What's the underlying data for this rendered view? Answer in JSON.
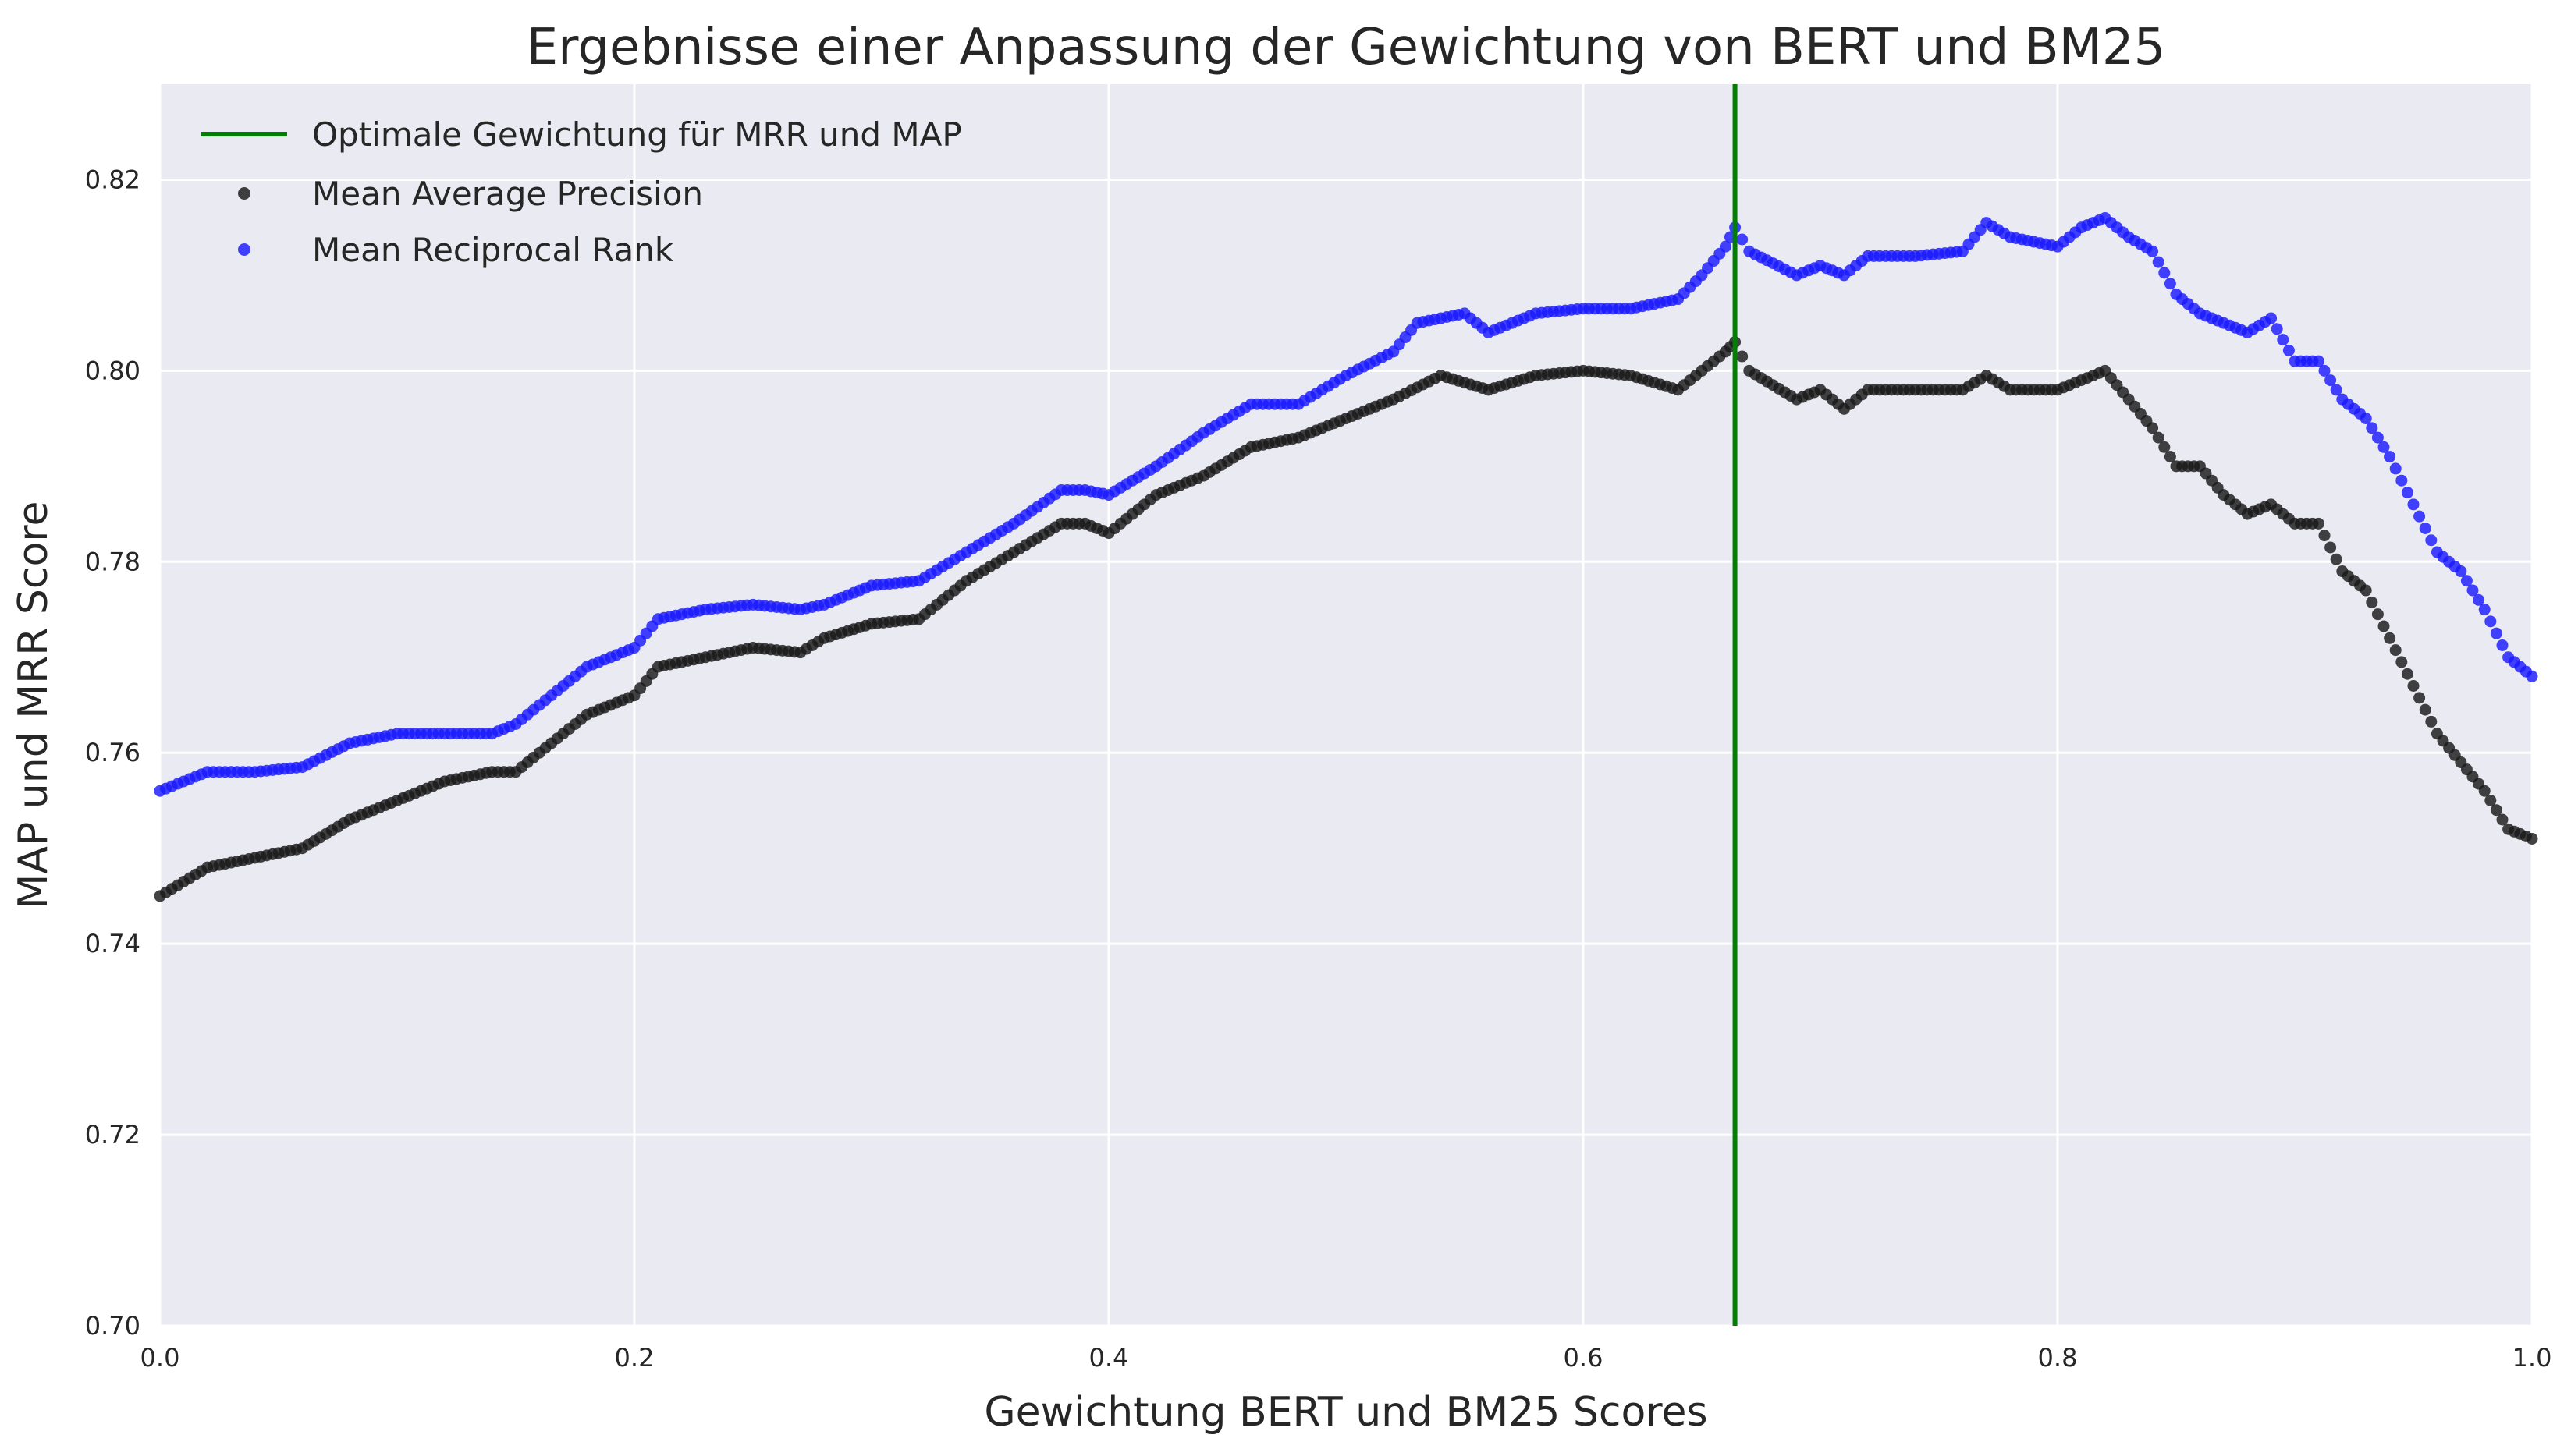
{
  "chart_data": {
    "type": "scatter",
    "title": "Ergebnisse einer Anpassung der Gewichtung von BERT und BM25",
    "xlabel": "Gewichtung BERT und BM25 Scores",
    "ylabel": "MAP und MRR Score",
    "xlim": [
      0.0,
      1.0
    ],
    "ylim": [
      0.7,
      0.83
    ],
    "xticks": [
      "0.0",
      "0.2",
      "0.4",
      "0.6",
      "0.8",
      "1.0"
    ],
    "yticks": [
      "0.70",
      "0.72",
      "0.74",
      "0.76",
      "0.78",
      "0.80",
      "0.82"
    ],
    "grid": true,
    "legend_position": "top-left",
    "background_color": "#eaeaf2",
    "vline": {
      "name": "Optimale Gewichtung für MRR und MAP",
      "x": 0.664,
      "color": "#008000"
    },
    "series": [
      {
        "name": "Mean Average Precision",
        "color": "#1a1a1a",
        "points": [
          [
            0.0,
            0.745
          ],
          [
            0.02,
            0.748
          ],
          [
            0.04,
            0.749
          ],
          [
            0.06,
            0.75
          ],
          [
            0.08,
            0.753
          ],
          [
            0.1,
            0.755
          ],
          [
            0.12,
            0.757
          ],
          [
            0.14,
            0.758
          ],
          [
            0.15,
            0.758
          ],
          [
            0.16,
            0.76
          ],
          [
            0.18,
            0.764
          ],
          [
            0.2,
            0.766
          ],
          [
            0.21,
            0.769
          ],
          [
            0.23,
            0.77
          ],
          [
            0.25,
            0.771
          ],
          [
            0.27,
            0.7705
          ],
          [
            0.28,
            0.772
          ],
          [
            0.3,
            0.7735
          ],
          [
            0.32,
            0.774
          ],
          [
            0.34,
            0.778
          ],
          [
            0.36,
            0.781
          ],
          [
            0.38,
            0.784
          ],
          [
            0.39,
            0.784
          ],
          [
            0.4,
            0.783
          ],
          [
            0.42,
            0.787
          ],
          [
            0.44,
            0.789
          ],
          [
            0.46,
            0.792
          ],
          [
            0.48,
            0.793
          ],
          [
            0.5,
            0.795
          ],
          [
            0.52,
            0.797
          ],
          [
            0.54,
            0.7995
          ],
          [
            0.56,
            0.798
          ],
          [
            0.58,
            0.7995
          ],
          [
            0.6,
            0.8
          ],
          [
            0.62,
            0.7995
          ],
          [
            0.64,
            0.798
          ],
          [
            0.66,
            0.802
          ],
          [
            0.664,
            0.803
          ],
          [
            0.67,
            0.8
          ],
          [
            0.69,
            0.797
          ],
          [
            0.7,
            0.798
          ],
          [
            0.71,
            0.796
          ],
          [
            0.72,
            0.798
          ],
          [
            0.74,
            0.798
          ],
          [
            0.76,
            0.798
          ],
          [
            0.77,
            0.7995
          ],
          [
            0.78,
            0.798
          ],
          [
            0.8,
            0.798
          ],
          [
            0.82,
            0.8
          ],
          [
            0.83,
            0.797
          ],
          [
            0.84,
            0.794
          ],
          [
            0.85,
            0.79
          ],
          [
            0.86,
            0.79
          ],
          [
            0.87,
            0.787
          ],
          [
            0.88,
            0.785
          ],
          [
            0.89,
            0.786
          ],
          [
            0.9,
            0.784
          ],
          [
            0.91,
            0.784
          ],
          [
            0.92,
            0.779
          ],
          [
            0.93,
            0.777
          ],
          [
            0.94,
            0.772
          ],
          [
            0.95,
            0.767
          ],
          [
            0.96,
            0.762
          ],
          [
            0.97,
            0.759
          ],
          [
            0.98,
            0.756
          ],
          [
            0.99,
            0.752
          ],
          [
            1.0,
            0.751
          ]
        ]
      },
      {
        "name": "Mean Reciprocal Rank",
        "color": "#1a1aff",
        "points": [
          [
            0.0,
            0.756
          ],
          [
            0.02,
            0.758
          ],
          [
            0.04,
            0.758
          ],
          [
            0.06,
            0.7585
          ],
          [
            0.08,
            0.761
          ],
          [
            0.1,
            0.762
          ],
          [
            0.12,
            0.762
          ],
          [
            0.14,
            0.762
          ],
          [
            0.15,
            0.763
          ],
          [
            0.16,
            0.765
          ],
          [
            0.18,
            0.769
          ],
          [
            0.2,
            0.771
          ],
          [
            0.21,
            0.774
          ],
          [
            0.23,
            0.775
          ],
          [
            0.25,
            0.7755
          ],
          [
            0.27,
            0.775
          ],
          [
            0.28,
            0.7755
          ],
          [
            0.3,
            0.7775
          ],
          [
            0.32,
            0.778
          ],
          [
            0.34,
            0.781
          ],
          [
            0.36,
            0.784
          ],
          [
            0.38,
            0.7875
          ],
          [
            0.39,
            0.7875
          ],
          [
            0.4,
            0.787
          ],
          [
            0.42,
            0.79
          ],
          [
            0.44,
            0.7935
          ],
          [
            0.46,
            0.7965
          ],
          [
            0.48,
            0.7965
          ],
          [
            0.5,
            0.7995
          ],
          [
            0.52,
            0.802
          ],
          [
            0.53,
            0.805
          ],
          [
            0.55,
            0.806
          ],
          [
            0.56,
            0.804
          ],
          [
            0.58,
            0.806
          ],
          [
            0.6,
            0.8065
          ],
          [
            0.62,
            0.8065
          ],
          [
            0.64,
            0.8075
          ],
          [
            0.65,
            0.81
          ],
          [
            0.66,
            0.813
          ],
          [
            0.664,
            0.815
          ],
          [
            0.67,
            0.8125
          ],
          [
            0.69,
            0.81
          ],
          [
            0.7,
            0.811
          ],
          [
            0.71,
            0.81
          ],
          [
            0.72,
            0.812
          ],
          [
            0.74,
            0.812
          ],
          [
            0.76,
            0.8125
          ],
          [
            0.77,
            0.8155
          ],
          [
            0.78,
            0.814
          ],
          [
            0.8,
            0.813
          ],
          [
            0.81,
            0.815
          ],
          [
            0.82,
            0.816
          ],
          [
            0.83,
            0.814
          ],
          [
            0.84,
            0.8125
          ],
          [
            0.85,
            0.808
          ],
          [
            0.86,
            0.806
          ],
          [
            0.87,
            0.805
          ],
          [
            0.88,
            0.804
          ],
          [
            0.89,
            0.8055
          ],
          [
            0.9,
            0.801
          ],
          [
            0.91,
            0.801
          ],
          [
            0.92,
            0.797
          ],
          [
            0.93,
            0.795
          ],
          [
            0.94,
            0.791
          ],
          [
            0.95,
            0.786
          ],
          [
            0.96,
            0.781
          ],
          [
            0.97,
            0.779
          ],
          [
            0.98,
            0.775
          ],
          [
            0.99,
            0.77
          ],
          [
            1.0,
            0.768
          ]
        ]
      }
    ]
  }
}
